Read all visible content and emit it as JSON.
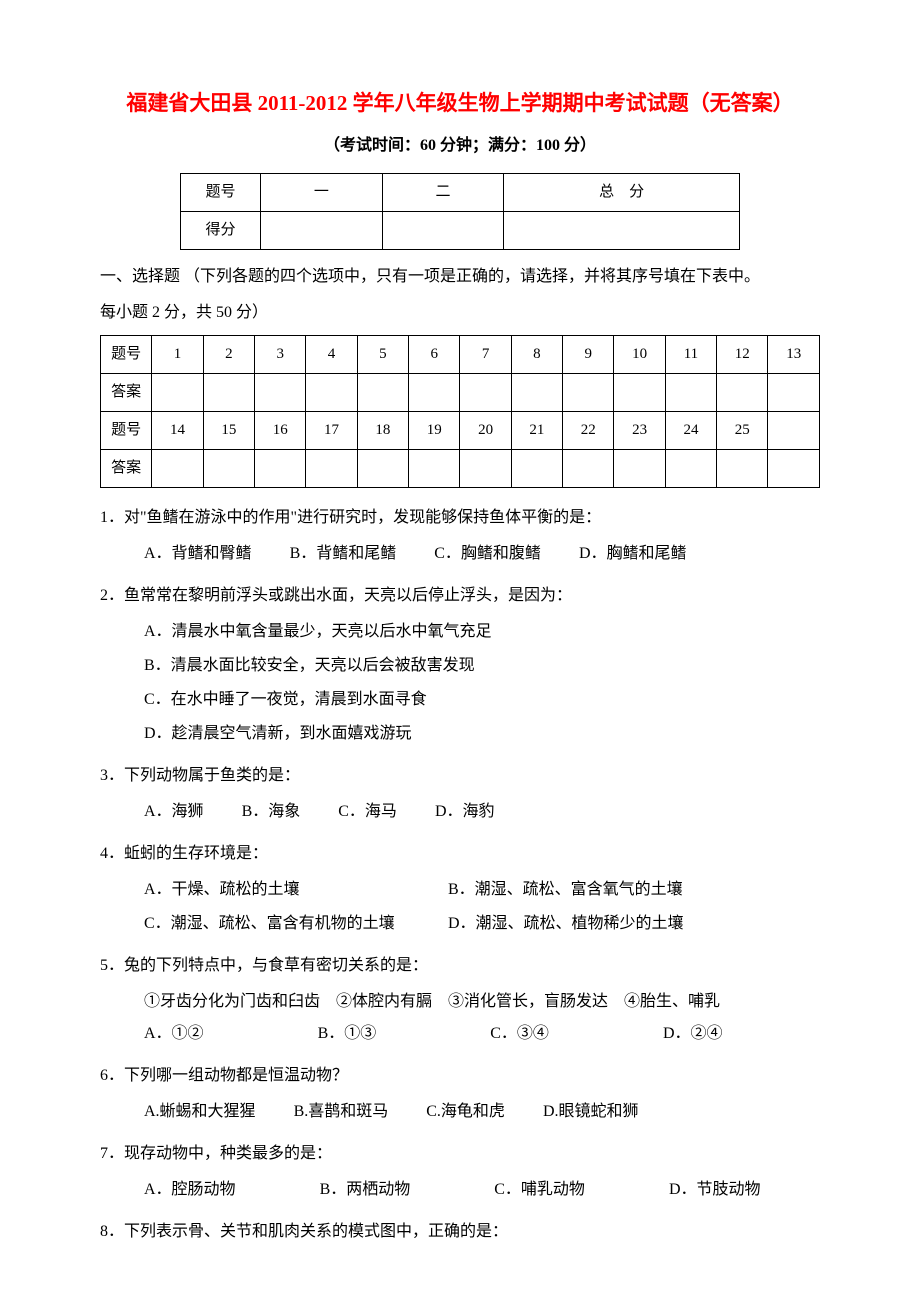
{
  "document": {
    "title": "福建省大田县 2011-2012 学年八年级生物上学期期中考试试题（无答案）",
    "exam_info": "（考试时间：60 分钟；满分：100 分）",
    "title_color": "#ff0000",
    "body_color": "#000000"
  },
  "score_table": {
    "row1": {
      "c0": "题号",
      "c1": "一",
      "c2": "二",
      "c3": "总　分"
    },
    "row2": {
      "c0": "得分",
      "c1": "",
      "c2": "",
      "c3": ""
    }
  },
  "section1": {
    "intro_line1": "一、选择题 （下列各题的四个选项中，只有一项是正确的，请选择，并将其序号填在下表中。",
    "intro_line2": "每小题 2 分，共 50 分）"
  },
  "answer_table": {
    "label_q": "题号",
    "label_a": "答案",
    "row1": [
      "1",
      "2",
      "3",
      "4",
      "5",
      "6",
      "7",
      "8",
      "9",
      "10",
      "11",
      "12",
      "13"
    ],
    "row2": [
      "14",
      "15",
      "16",
      "17",
      "18",
      "19",
      "20",
      "21",
      "22",
      "23",
      "24",
      "25",
      ""
    ]
  },
  "questions": {
    "q1": {
      "text": "1．对\"鱼鳍在游泳中的作用\"进行研究时，发现能够保持鱼体平衡的是：",
      "opts": {
        "A": "A．背鳍和臀鳍",
        "B": "B．背鳍和尾鳍",
        "C": "C．胸鳍和腹鳍",
        "D": "D．胸鳍和尾鳍"
      }
    },
    "q2": {
      "text": "2．鱼常常在黎明前浮头或跳出水面，天亮以后停止浮头，是因为：",
      "opts": {
        "A": "A．清晨水中氧含量最少，天亮以后水中氧气充足",
        "B": "B．清晨水面比较安全，天亮以后会被敌害发现",
        "C": "C．在水中睡了一夜觉，清晨到水面寻食",
        "D": "D．趁清晨空气清新，到水面嬉戏游玩"
      }
    },
    "q3": {
      "text": "3．下列动物属于鱼类的是：",
      "opts": {
        "A": "A．海狮",
        "B": "B．海象",
        "C": "C．海马",
        "D": "D．海豹"
      }
    },
    "q4": {
      "text": "4．蚯蚓的生存环境是：",
      "opts": {
        "A": "A．干燥、疏松的土壤",
        "B": "B．潮湿、疏松、富含氧气的土壤",
        "C": "C．潮湿、疏松、富含有机物的土壤",
        "D": "D．潮湿、疏松、植物稀少的土壤"
      }
    },
    "q5": {
      "text": "5．兔的下列特点中，与食草有密切关系的是：",
      "sub": "①牙齿分化为门齿和臼齿　②体腔内有膈　③消化管长，盲肠发达　④胎生、哺乳",
      "opts": {
        "A": "A．①②",
        "B": "B．①③",
        "C": "C．③④",
        "D": "D．②④"
      }
    },
    "q6": {
      "text": "6．下列哪一组动物都是恒温动物？",
      "opts": {
        "A": "A.蜥蜴和大猩猩",
        "B": "B.喜鹊和斑马",
        "C": "C.海龟和虎",
        "D": "D.眼镜蛇和狮"
      }
    },
    "q7": {
      "text": "7．现存动物中，种类最多的是：",
      "opts": {
        "A": "A．腔肠动物",
        "B": "B．两栖动物",
        "C": "C．哺乳动物",
        "D": "D．节肢动物"
      }
    },
    "q8": {
      "text": "8．下列表示骨、关节和肌肉关系的模式图中，正确的是："
    }
  }
}
